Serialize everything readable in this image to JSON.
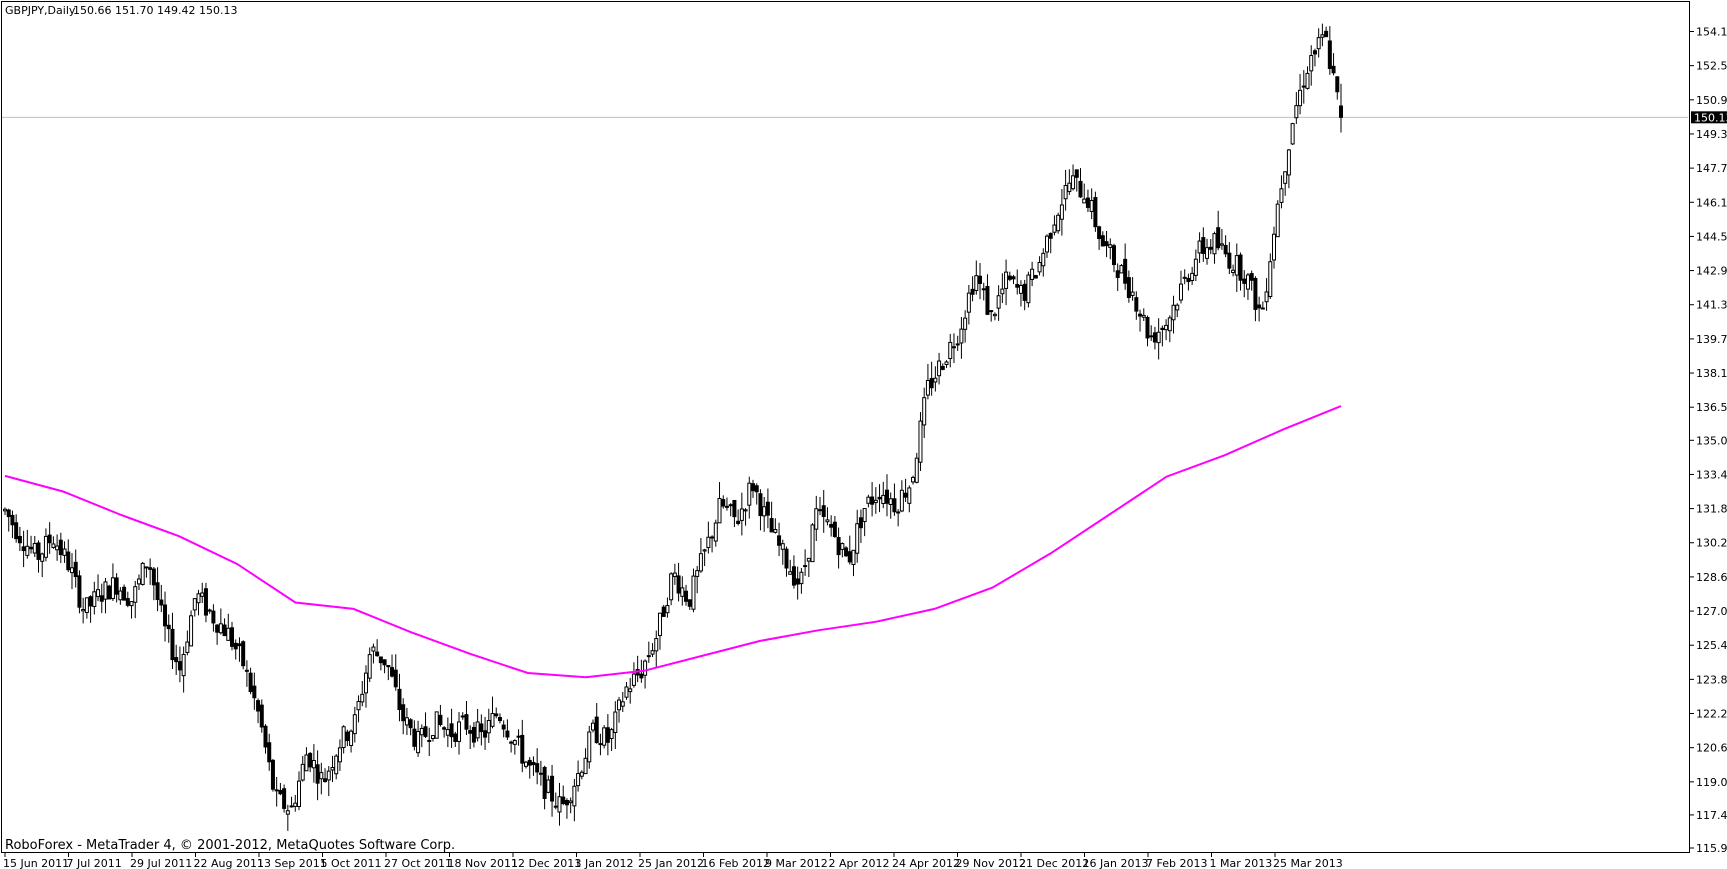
{
  "header": {
    "symbol_timeframe": "GBPJPY,Daily",
    "ohlc": "150.66 151.70 149.42 150.13"
  },
  "footer": {
    "copyright": "RoboForex - MetaTrader 4, © 2001-2012, MetaQuotes Software Corp."
  },
  "colors": {
    "background": "#ffffff",
    "candles": "#000000",
    "moving_average": "#ff00ff",
    "price_line": "#c0c0c0",
    "price_label_bg": "#000000",
    "price_label_text": "#ffffff"
  },
  "chart_data": {
    "type": "candlestick",
    "symbol": "GBPJPY",
    "timeframe": "Daily",
    "ylim": [
      115.9,
      154.9
    ],
    "grid": false,
    "current_price": 150.13,
    "last_bar": {
      "open": 150.66,
      "high": 151.7,
      "low": 149.42,
      "close": 150.13
    },
    "y_ticks": [
      154.15,
      152.55,
      150.95,
      149.35,
      147.75,
      146.15,
      144.55,
      142.95,
      141.35,
      139.75,
      138.15,
      136.55,
      135.0,
      133.4,
      131.8,
      130.2,
      128.6,
      127.0,
      125.4,
      123.8,
      122.2,
      120.6,
      119.0,
      117.45,
      115.9
    ],
    "y_tick_labels": [
      "154.15",
      "152.55",
      "150.95",
      "149.35",
      "147.75",
      "146.15",
      "144.55",
      "142.95",
      "141.35",
      "139.75",
      "138.15",
      "136.55",
      "135.00",
      "133.40",
      "131.80",
      "130.20",
      "128.60",
      "127.00",
      "125.40",
      "123.80",
      "122.20",
      "120.60",
      "119.00",
      "117.45",
      "115.90"
    ],
    "x_tick_labels": [
      "15 Jun 2011",
      "7 Jul 2011",
      "29 Jul 2011",
      "22 Aug 2011",
      "13 Sep 2011",
      "5 Oct 2011",
      "27 Oct 2011",
      "18 Nov 2011",
      "12 Dec 2011",
      "3 Jan 2012",
      "25 Jan 2012",
      "16 Feb 2012",
      "9 Mar 2012",
      "2 Apr 2012",
      "24 Apr 2012",
      "29 Nov 2012",
      "21 Dec 2012",
      "16 Jan 2013",
      "7 Feb 2013",
      "1 Mar 2013",
      "25 Mar 2013"
    ],
    "price_path": [
      131.7,
      130.5,
      129.5,
      130.5,
      129.2,
      127.0,
      127.8,
      128.3,
      127.5,
      129.5,
      126.2,
      124.3,
      127.8,
      126.8,
      126.0,
      124.5,
      122.0,
      118.2,
      117.7,
      120.4,
      119.0,
      120.8,
      121.8,
      125.2,
      124.6,
      122.0,
      120.8,
      121.8,
      121.3,
      121.7,
      121.1,
      122.3,
      121.0,
      119.6,
      118.7,
      117.8,
      119.3,
      121.4,
      120.9,
      123.3,
      124.2,
      125.9,
      128.8,
      127.5,
      129.7,
      132.0,
      131.2,
      133.0,
      131.0,
      129.5,
      128.2,
      131.5,
      130.8,
      129.3,
      131.8,
      132.7,
      132.0,
      133.1,
      137.4,
      138.8,
      140.2,
      142.8,
      140.8,
      142.5,
      141.8,
      143.2,
      145.5,
      147.2,
      146.5,
      144.2,
      143.1,
      141.8,
      139.8,
      140.5,
      142.2,
      143.8,
      144.3,
      143.5,
      142.8,
      140.8,
      146.0,
      150.2,
      152.8,
      153.9,
      150.13
    ],
    "moving_average": {
      "name": "",
      "values": [
        133.33,
        132.6,
        131.5,
        130.5,
        129.2,
        127.4,
        127.1,
        126.0,
        125.0,
        124.1,
        123.9,
        124.2,
        124.9,
        125.6,
        126.1,
        126.5,
        127.1,
        128.1,
        129.7,
        131.5,
        133.3,
        134.3,
        135.5,
        136.6
      ]
    }
  }
}
